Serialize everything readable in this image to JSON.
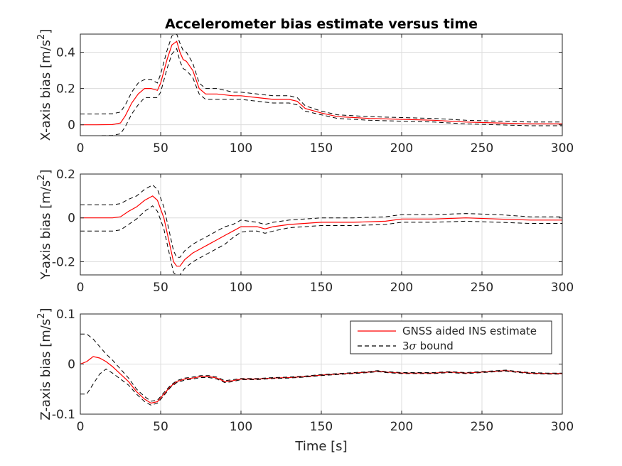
{
  "chart_data": [
    {
      "type": "line",
      "title": "Accelerometer bias estimate versus time",
      "xlabel": "",
      "ylabel": "X-axis bias [m/s",
      "ylabel_sup": "2",
      "ylabel_tail": "]",
      "xlim": [
        0,
        300
      ],
      "ylim": [
        -0.06,
        0.5
      ],
      "xticks": [
        0,
        50,
        100,
        150,
        200,
        250,
        300
      ],
      "yticks": [
        0,
        0.2,
        0.4
      ],
      "ytick_labels": [
        "0",
        "0.2",
        "0.4"
      ],
      "grid": true,
      "series": [
        {
          "role": "estimate",
          "color": "#ff0000",
          "style": "solid",
          "x": [
            0,
            10,
            20,
            25,
            28,
            32,
            36,
            40,
            44,
            48,
            50,
            54,
            57,
            60,
            62,
            64,
            66,
            70,
            74,
            78,
            85,
            95,
            100,
            110,
            120,
            130,
            135,
            140,
            150,
            160,
            180,
            200,
            220,
            240,
            260,
            280,
            300
          ],
          "y": [
            0.0,
            0.0,
            0.001,
            0.01,
            0.05,
            0.12,
            0.17,
            0.2,
            0.2,
            0.19,
            0.23,
            0.36,
            0.44,
            0.46,
            0.4,
            0.36,
            0.35,
            0.3,
            0.2,
            0.17,
            0.17,
            0.16,
            0.16,
            0.15,
            0.14,
            0.14,
            0.13,
            0.09,
            0.065,
            0.045,
            0.035,
            0.03,
            0.025,
            0.015,
            0.01,
            0.005,
            0.005
          ]
        },
        {
          "role": "upper-3sigma",
          "color": "#000000",
          "style": "dashed",
          "x": [
            0,
            10,
            20,
            25,
            28,
            32,
            36,
            40,
            44,
            48,
            50,
            54,
            57,
            60,
            62,
            64,
            66,
            70,
            74,
            78,
            85,
            95,
            100,
            110,
            120,
            130,
            135,
            140,
            150,
            160,
            180,
            200,
            220,
            240,
            260,
            280,
            300
          ],
          "y": [
            0.06,
            0.06,
            0.061,
            0.07,
            0.11,
            0.18,
            0.23,
            0.25,
            0.25,
            0.23,
            0.28,
            0.41,
            0.49,
            0.5,
            0.45,
            0.41,
            0.4,
            0.34,
            0.23,
            0.2,
            0.2,
            0.18,
            0.18,
            0.17,
            0.16,
            0.16,
            0.15,
            0.105,
            0.075,
            0.055,
            0.045,
            0.04,
            0.035,
            0.025,
            0.02,
            0.015,
            0.015
          ]
        },
        {
          "role": "lower-3sigma",
          "color": "#000000",
          "style": "dashed",
          "x": [
            0,
            10,
            20,
            25,
            28,
            32,
            36,
            40,
            44,
            48,
            50,
            54,
            57,
            60,
            62,
            64,
            66,
            70,
            74,
            78,
            85,
            95,
            100,
            110,
            120,
            130,
            135,
            140,
            150,
            160,
            180,
            200,
            220,
            240,
            260,
            280,
            300
          ],
          "y": [
            -0.06,
            -0.06,
            -0.059,
            -0.05,
            -0.01,
            0.06,
            0.11,
            0.15,
            0.15,
            0.15,
            0.18,
            0.31,
            0.39,
            0.42,
            0.35,
            0.31,
            0.3,
            0.26,
            0.17,
            0.14,
            0.14,
            0.14,
            0.14,
            0.13,
            0.12,
            0.12,
            0.11,
            0.075,
            0.055,
            0.035,
            0.025,
            0.02,
            0.015,
            0.005,
            0.0,
            -0.005,
            -0.005
          ]
        }
      ]
    },
    {
      "type": "line",
      "xlabel": "",
      "ylabel": "Y-axis bias [m/s",
      "ylabel_sup": "2",
      "ylabel_tail": "]",
      "xlim": [
        0,
        300
      ],
      "ylim": [
        -0.26,
        0.2
      ],
      "xticks": [
        0,
        50,
        100,
        150,
        200,
        250,
        300
      ],
      "yticks": [
        -0.2,
        0,
        0.2
      ],
      "ytick_labels": [
        "-0.2",
        "0",
        "0.2"
      ],
      "grid": true,
      "series": [
        {
          "role": "estimate",
          "color": "#ff0000",
          "style": "solid",
          "x": [
            0,
            10,
            20,
            25,
            30,
            35,
            40,
            45,
            48,
            52,
            55,
            58,
            60,
            62,
            65,
            70,
            75,
            80,
            85,
            90,
            95,
            100,
            105,
            110,
            115,
            120,
            130,
            150,
            170,
            190,
            200,
            220,
            240,
            260,
            280,
            300
          ],
          "y": [
            0.0,
            0.0,
            0.0,
            0.005,
            0.03,
            0.05,
            0.08,
            0.1,
            0.08,
            0.0,
            -0.1,
            -0.2,
            -0.22,
            -0.22,
            -0.19,
            -0.16,
            -0.14,
            -0.12,
            -0.1,
            -0.08,
            -0.06,
            -0.04,
            -0.04,
            -0.04,
            -0.05,
            -0.04,
            -0.03,
            -0.02,
            -0.02,
            -0.015,
            -0.005,
            -0.005,
            -0.0,
            -0.005,
            -0.01,
            -0.01
          ]
        },
        {
          "role": "upper-3sigma",
          "color": "#000000",
          "style": "dashed",
          "x": [
            0,
            10,
            20,
            25,
            30,
            35,
            40,
            45,
            48,
            52,
            55,
            58,
            60,
            62,
            65,
            70,
            75,
            80,
            85,
            90,
            95,
            100,
            105,
            110,
            115,
            120,
            130,
            150,
            170,
            190,
            200,
            220,
            240,
            260,
            280,
            300
          ],
          "y": [
            0.06,
            0.06,
            0.06,
            0.065,
            0.085,
            0.1,
            0.13,
            0.15,
            0.13,
            0.05,
            -0.05,
            -0.15,
            -0.18,
            -0.18,
            -0.15,
            -0.12,
            -0.1,
            -0.08,
            -0.06,
            -0.04,
            -0.03,
            -0.01,
            -0.015,
            -0.02,
            -0.03,
            -0.02,
            -0.01,
            -0.0,
            -0.0,
            0.005,
            0.015,
            0.015,
            0.02,
            0.015,
            0.005,
            0.005
          ]
        },
        {
          "role": "lower-3sigma",
          "color": "#000000",
          "style": "dashed",
          "x": [
            0,
            10,
            20,
            25,
            30,
            35,
            40,
            45,
            48,
            52,
            55,
            58,
            60,
            62,
            65,
            70,
            75,
            80,
            85,
            90,
            95,
            100,
            105,
            110,
            115,
            120,
            130,
            150,
            170,
            190,
            200,
            220,
            240,
            260,
            280,
            300
          ],
          "y": [
            -0.06,
            -0.06,
            -0.06,
            -0.055,
            -0.03,
            -0.005,
            0.03,
            0.055,
            0.03,
            -0.05,
            -0.15,
            -0.25,
            -0.26,
            -0.26,
            -0.23,
            -0.2,
            -0.18,
            -0.16,
            -0.14,
            -0.12,
            -0.09,
            -0.065,
            -0.06,
            -0.06,
            -0.07,
            -0.06,
            -0.045,
            -0.035,
            -0.035,
            -0.03,
            -0.02,
            -0.02,
            -0.015,
            -0.02,
            -0.025,
            -0.025
          ]
        }
      ]
    },
    {
      "type": "line",
      "xlabel": "Time [s]",
      "ylabel": "Z-axis bias [m/s",
      "ylabel_sup": "2",
      "ylabel_tail": "]",
      "xlim": [
        0,
        300
      ],
      "ylim": [
        -0.1,
        0.1
      ],
      "xticks": [
        0,
        50,
        100,
        150,
        200,
        250,
        300
      ],
      "yticks": [
        -0.1,
        0,
        0.1
      ],
      "ytick_labels": [
        "-0.1",
        "0",
        "0.1"
      ],
      "grid": true,
      "legend": {
        "position": "top-right",
        "entries": [
          {
            "label": "GNSS aided INS estimate",
            "color": "#ff0000",
            "style": "solid"
          },
          {
            "label": "3",
            "label_symbol": "σ",
            "label_tail": " bound",
            "color": "#000000",
            "style": "dashed"
          }
        ]
      },
      "series": [
        {
          "name": "GNSS aided INS estimate",
          "color": "#ff0000",
          "style": "solid",
          "x": [
            0,
            4,
            8,
            12,
            16,
            20,
            25,
            30,
            35,
            40,
            44,
            48,
            52,
            56,
            60,
            65,
            70,
            75,
            80,
            85,
            90,
            95,
            100,
            110,
            120,
            130,
            140,
            150,
            160,
            170,
            180,
            185,
            190,
            200,
            210,
            220,
            230,
            240,
            250,
            260,
            265,
            270,
            280,
            290,
            300
          ],
          "y": [
            0.0,
            0.005,
            0.015,
            0.012,
            0.005,
            -0.005,
            -0.02,
            -0.035,
            -0.055,
            -0.07,
            -0.078,
            -0.075,
            -0.06,
            -0.045,
            -0.035,
            -0.03,
            -0.028,
            -0.025,
            -0.025,
            -0.028,
            -0.035,
            -0.033,
            -0.03,
            -0.03,
            -0.028,
            -0.027,
            -0.025,
            -0.022,
            -0.02,
            -0.018,
            -0.016,
            -0.014,
            -0.016,
            -0.018,
            -0.018,
            -0.018,
            -0.016,
            -0.018,
            -0.016,
            -0.014,
            -0.013,
            -0.015,
            -0.018,
            -0.019,
            -0.019
          ]
        },
        {
          "name": "3σ bound",
          "color": "#000000",
          "style": "dashed",
          "x": [
            0,
            4,
            8,
            12,
            16,
            20,
            25,
            30,
            35,
            40,
            44,
            48,
            52,
            56,
            60,
            65,
            70,
            75,
            80,
            85,
            90,
            95,
            100,
            110,
            120,
            130,
            140,
            150,
            160,
            170,
            180,
            185,
            190,
            200,
            210,
            220,
            230,
            240,
            250,
            260,
            265,
            270,
            280,
            290,
            300
          ],
          "y": [
            0.06,
            0.06,
            0.05,
            0.035,
            0.02,
            0.008,
            -0.01,
            -0.028,
            -0.05,
            -0.065,
            -0.074,
            -0.072,
            -0.057,
            -0.043,
            -0.033,
            -0.028,
            -0.026,
            -0.023,
            -0.023,
            -0.026,
            -0.033,
            -0.031,
            -0.029,
            -0.029,
            -0.027,
            -0.026,
            -0.024,
            -0.021,
            -0.019,
            -0.017,
            -0.015,
            -0.013,
            -0.015,
            -0.017,
            -0.017,
            -0.017,
            -0.015,
            -0.017,
            -0.015,
            -0.013,
            -0.012,
            -0.014,
            -0.017,
            -0.018,
            -0.018
          ]
        },
        {
          "role": "lower-3sigma",
          "color": "#000000",
          "style": "dashed",
          "x": [
            0,
            4,
            8,
            12,
            16,
            20,
            25,
            30,
            35,
            40,
            44,
            48,
            52,
            56,
            60,
            65,
            70,
            75,
            80,
            85,
            90,
            95,
            100,
            110,
            120,
            130,
            140,
            150,
            160,
            170,
            180,
            185,
            190,
            200,
            210,
            220,
            230,
            240,
            250,
            260,
            265,
            270,
            280,
            290,
            300
          ],
          "y": [
            -0.06,
            -0.06,
            -0.04,
            -0.02,
            -0.01,
            -0.018,
            -0.03,
            -0.042,
            -0.06,
            -0.075,
            -0.082,
            -0.078,
            -0.063,
            -0.047,
            -0.037,
            -0.032,
            -0.03,
            -0.027,
            -0.027,
            -0.03,
            -0.037,
            -0.035,
            -0.031,
            -0.031,
            -0.029,
            -0.028,
            -0.026,
            -0.023,
            -0.021,
            -0.019,
            -0.017,
            -0.015,
            -0.017,
            -0.019,
            -0.019,
            -0.019,
            -0.017,
            -0.019,
            -0.017,
            -0.015,
            -0.014,
            -0.016,
            -0.019,
            -0.02,
            -0.02
          ]
        }
      ]
    }
  ]
}
